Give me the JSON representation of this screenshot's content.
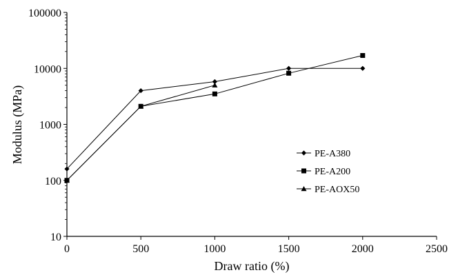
{
  "chart_data": {
    "type": "line",
    "xlabel": "Draw ratio (%)",
    "ylabel": "Modulus (MPa)",
    "xlim": [
      0,
      2500
    ],
    "ylim": [
      10,
      100000
    ],
    "y_scale": "log",
    "grid": false,
    "legend_position": "right-center",
    "x_ticks": [
      "0",
      "500",
      "1000",
      "1500",
      "2000",
      "2500"
    ],
    "y_ticks": [
      "10",
      "100",
      "1000",
      "10000",
      "100000"
    ],
    "series": [
      {
        "name": "PE-A380",
        "marker": "diamond",
        "x": [
          0,
          500,
          1000,
          1500,
          2000
        ],
        "y": [
          160,
          4000,
          5800,
          10000,
          10000
        ]
      },
      {
        "name": "PE-A200",
        "marker": "square",
        "x": [
          0,
          500,
          1000,
          1500,
          2000
        ],
        "y": [
          100,
          2100,
          3500,
          8200,
          17000
        ]
      },
      {
        "name": "PE-AOX50",
        "marker": "triangle",
        "x": [
          0,
          500,
          1000
        ],
        "y": [
          100,
          2100,
          5000
        ]
      }
    ]
  }
}
